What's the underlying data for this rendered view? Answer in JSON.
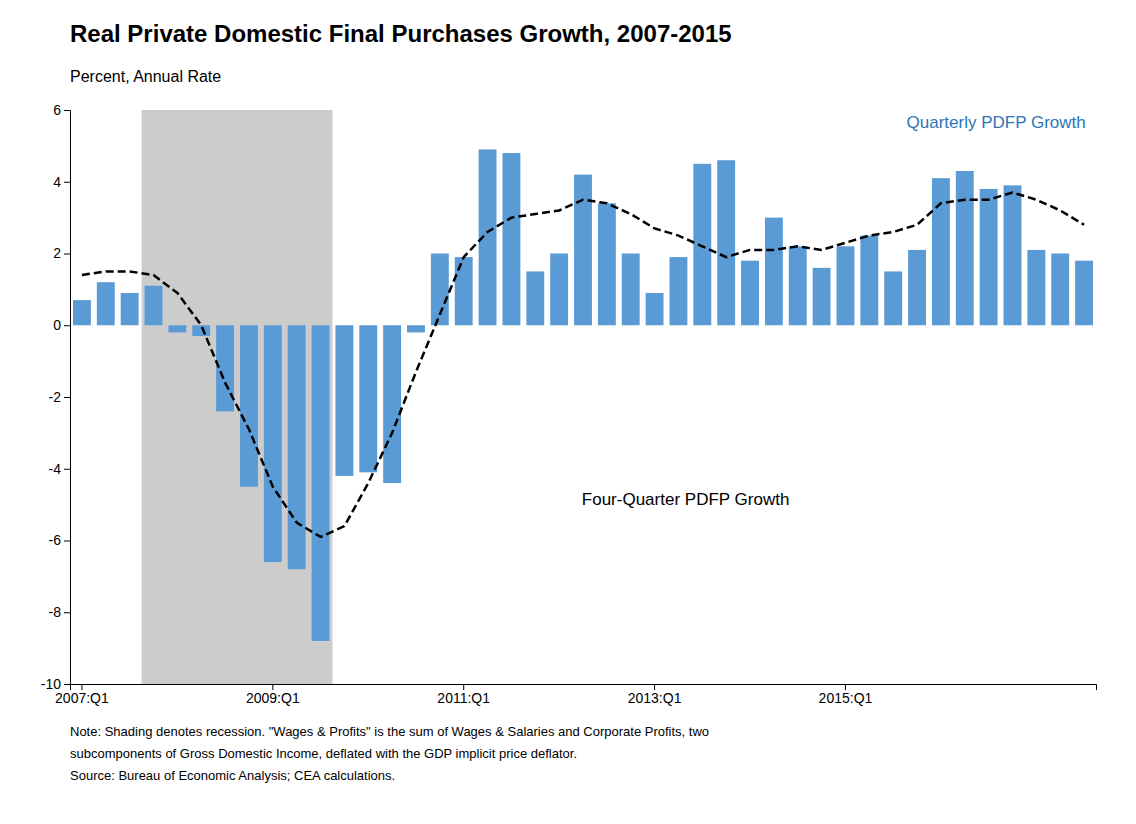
{
  "chart_data": {
    "type": "bar",
    "title": "Real Private Domestic Final Purchases Growth, 2007-2015",
    "ylabel": "Percent, Annual Rate",
    "notes": [
      "Note: Shading denotes recession. \"Wages & Profits\" is the sum of Wages & Salaries and Corporate Profits, two",
      "subcomponents of Gross Domestic Income, deflated with the GDP implicit price deflator.",
      "Source: Bureau of Economic Analysis; CEA calculations."
    ],
    "categories": [
      "2007:Q1",
      null,
      null,
      null,
      null,
      null,
      null,
      null,
      "2009:Q1",
      null,
      null,
      null,
      null,
      null,
      null,
      null,
      "2011:Q1",
      null,
      null,
      null,
      null,
      null,
      null,
      null,
      "2013:Q1",
      null,
      null,
      null,
      null,
      null,
      null,
      null,
      "2015:Q1",
      null,
      null,
      null,
      null,
      null,
      null,
      null,
      null,
      null,
      null
    ],
    "series": [
      {
        "type": "bar",
        "color": "#5B9BD5",
        "values": [
          0.7,
          1.2,
          0.9,
          1.1,
          -0.2,
          -0.3,
          -2.4,
          -4.5,
          -6.6,
          -6.8,
          -8.8,
          -4.2,
          -4.1,
          -4.4,
          -0.2,
          2.0,
          1.9,
          4.9,
          4.8,
          1.5,
          2.0,
          4.2,
          3.4,
          2.0,
          0.9,
          1.9,
          4.5,
          4.6,
          1.8,
          3.0,
          2.2,
          1.6,
          2.2,
          2.5,
          1.5,
          2.1,
          4.1,
          4.3,
          3.8,
          3.9,
          2.1,
          2.0,
          1.8
        ]
      },
      {
        "type": "line",
        "color": "#000000",
        "line_style": "dashed",
        "values": [
          1.4,
          1.5,
          1.5,
          1.4,
          0.9,
          0.0,
          -1.6,
          -2.9,
          -4.5,
          -5.5,
          -5.9,
          -5.6,
          -4.4,
          -3.0,
          -1.3,
          0.3,
          1.9,
          2.6,
          3.0,
          3.1,
          3.2,
          3.5,
          3.4,
          3.1,
          2.7,
          2.5,
          2.2,
          1.9,
          2.1,
          2.1,
          2.2,
          2.1,
          2.3,
          2.5,
          2.6,
          2.8,
          3.4,
          3.5,
          3.5,
          3.7,
          3.5,
          3.2,
          2.8
        ]
      }
    ],
    "annotations": [
      {
        "text": "Quarterly PDFP Growth",
        "color": "#2E75B6"
      },
      {
        "text": "Four-Quarter PDFP Growth",
        "color": "#000000"
      }
    ],
    "recession": {
      "from": 3,
      "to": 10,
      "color": "#cccccc"
    },
    "ylim": [
      -10,
      6
    ],
    "yticks": [
      -10,
      -8,
      -6,
      -4,
      -2,
      0,
      2,
      4,
      6
    ]
  }
}
